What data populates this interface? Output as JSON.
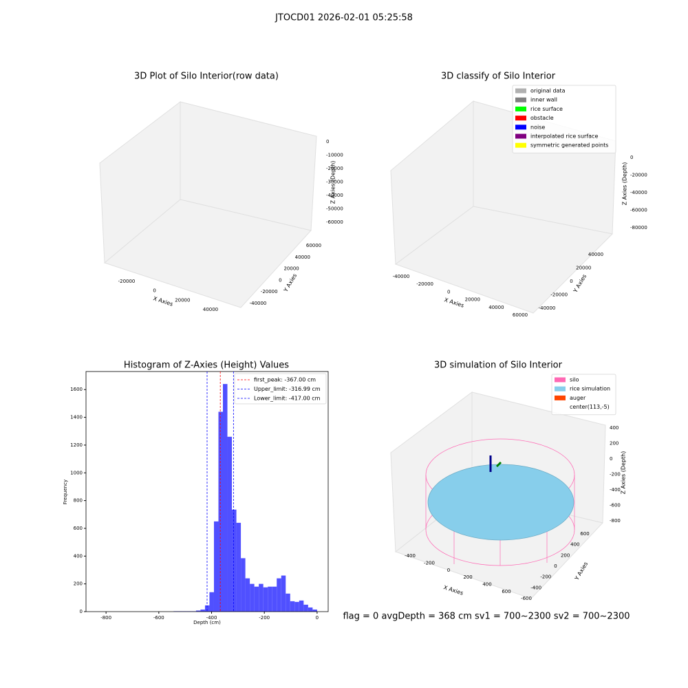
{
  "suptitle": "JTOCD01 2026-02-01 05:25:58",
  "footer": "flag = 0    avgDepth = 368 cm  sv1 = 700~2300  sv2 = 700~2300",
  "panels": [
    {
      "title": "3D Plot of Silo Interior(row data)",
      "xlabel": "X Axies",
      "ylabel": "Y Axies",
      "zlabel": "Z Axies (Depth)",
      "xticks": [
        -20000,
        0,
        20000,
        40000
      ],
      "yticks": [
        -40000,
        -20000,
        0,
        20000,
        40000,
        60000
      ],
      "zticks": [
        0,
        -10000,
        -20000,
        -30000,
        -40000,
        -50000,
        -60000
      ]
    },
    {
      "title": "3D classify of Silo Interior",
      "xlabel": "X Axies",
      "ylabel": "Y Axies",
      "zlabel": "Z Axies (Depth)",
      "xticks": [
        -40000,
        -20000,
        0,
        20000,
        40000,
        60000
      ],
      "yticks": [
        -40000,
        -20000,
        0,
        20000,
        40000
      ],
      "zticks": [
        0,
        -20000,
        -40000,
        -60000,
        -80000
      ],
      "legend": [
        {
          "name": "original data",
          "color": "#b0b0b0"
        },
        {
          "name": "inner wall",
          "color": "#808080"
        },
        {
          "name": "rice surface",
          "color": "#00ff00"
        },
        {
          "name": "obstacle",
          "color": "#ff0000"
        },
        {
          "name": "noise",
          "color": "#0000ff"
        },
        {
          "name": "interpolated rice surface",
          "color": "#800080"
        },
        {
          "name": "symmetric generated points",
          "color": "#ffff00"
        }
      ]
    },
    {
      "title": "3D simulation of Silo Interior",
      "xlabel": "X Axies",
      "ylabel": "Y Axies",
      "zlabel": "Z Axies (Depth)",
      "xticks": [
        -400,
        -200,
        0,
        200,
        400,
        600
      ],
      "yticks": [
        -600,
        -400,
        -200,
        0,
        200,
        400,
        600
      ],
      "zticks": [
        400,
        200,
        0,
        -200,
        -400,
        -600,
        -800
      ],
      "legend": [
        {
          "name": "silo",
          "color": "#ff69b4"
        },
        {
          "name": "rice simulation",
          "color": "#87ceeb"
        },
        {
          "name": "auger",
          "color": "#ff4500"
        },
        {
          "name": "center(113,-5)",
          "color": "#ffffff"
        }
      ]
    }
  ],
  "chart_data": {
    "type": "histogram",
    "title": "Histogram of Z-Axies (Height) Values",
    "xlabel": "Depth (cm)",
    "ylabel": "Frequency",
    "color": "#5050ff",
    "bins": [
      -544,
      -527,
      -510,
      -493,
      -476,
      -459,
      -442,
      -425,
      -408,
      -391,
      -374,
      -357,
      -340,
      -323,
      -306,
      -289,
      -272,
      -255,
      -238,
      -221,
      -204,
      -187,
      -170,
      -153,
      -136,
      -119,
      -102,
      -85,
      -68,
      -51,
      -34,
      -17,
      0
    ],
    "values": [
      3,
      3,
      3,
      3,
      3,
      8,
      15,
      45,
      140,
      650,
      1440,
      1640,
      1260,
      735,
      640,
      385,
      240,
      200,
      180,
      200,
      175,
      180,
      180,
      240,
      260,
      130,
      75,
      70,
      80,
      50,
      30,
      15
    ],
    "xlim": [
      -876,
      42
    ],
    "ylim": [
      0,
      1730
    ],
    "xticks": [
      -800,
      -600,
      -400,
      -200,
      0
    ],
    "yticks": [
      0,
      200,
      400,
      600,
      800,
      1000,
      1200,
      1400,
      1600
    ],
    "vlines": [
      {
        "name": "first_peak: -367.00 cm",
        "value": -367,
        "color": "#ff0000"
      },
      {
        "name": "Upper_limit: -316.99 cm",
        "value": -316.99,
        "color": "#0000ff"
      },
      {
        "name": "Lower_limit: -417.00 cm",
        "value": -417,
        "color": "#0000ff"
      }
    ]
  }
}
